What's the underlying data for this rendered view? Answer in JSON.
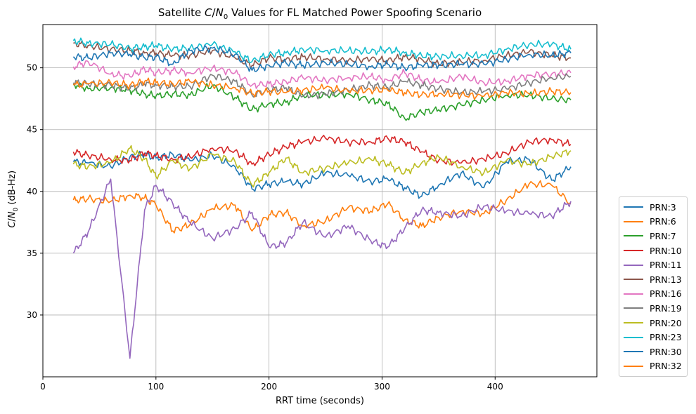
{
  "chart_data": {
    "type": "line",
    "title": "Satellite C/N0 Values for FL Matched Power Spoofing Scenario",
    "title_parts": [
      "Satellite ",
      "C",
      "/",
      "N",
      "0",
      " Values for FL Matched Power Spoofing Scenario"
    ],
    "xlabel": "RRT time (seconds)",
    "ylabel_parts": [
      "C",
      "/",
      "N",
      "0",
      " (dB-Hz)"
    ],
    "xlim": [
      0,
      490
    ],
    "ylim": [
      25,
      53.5
    ],
    "xticks": [
      0,
      100,
      200,
      300,
      400
    ],
    "yticks": [
      30,
      35,
      40,
      45,
      50
    ],
    "grid": true,
    "legend_position": "outside-right-bottom",
    "x": [
      27,
      40,
      60,
      77,
      90,
      100,
      115,
      130,
      150,
      170,
      185,
      200,
      215,
      230,
      250,
      270,
      290,
      305,
      320,
      335,
      350,
      370,
      390,
      410,
      430,
      450,
      467
    ],
    "series": [
      {
        "name": "PRN:3",
        "color": "#1f77b4",
        "values": [
          42.4,
          42.3,
          42.0,
          42.8,
          43.0,
          42.7,
          43.0,
          42.5,
          42.9,
          42.0,
          40.2,
          40.6,
          40.8,
          40.6,
          41.5,
          41.3,
          40.8,
          41.0,
          40.3,
          39.6,
          40.5,
          41.5,
          40.3,
          42.4,
          42.6,
          40.9,
          42.0
        ]
      },
      {
        "name": "PRN:6",
        "color": "#ff7f0e",
        "values": [
          39.3,
          39.4,
          39.2,
          39.7,
          39.5,
          38.9,
          36.8,
          37.3,
          38.6,
          38.9,
          36.8,
          38.1,
          38.3,
          37.2,
          37.6,
          38.7,
          38.4,
          39.0,
          37.7,
          37.2,
          37.9,
          38.4,
          38.2,
          39.3,
          40.6,
          40.5,
          39.0
        ]
      },
      {
        "name": "PRN:7",
        "color": "#2ca02c",
        "values": [
          48.7,
          48.3,
          48.4,
          48.2,
          47.9,
          47.7,
          47.9,
          47.8,
          48.6,
          47.6,
          46.6,
          47.1,
          47.2,
          47.8,
          47.8,
          47.9,
          47.4,
          47.1,
          45.9,
          46.4,
          46.6,
          47.0,
          47.4,
          47.8,
          47.8,
          47.5,
          47.4
        ]
      },
      {
        "name": "PRN:10",
        "color": "#d62728",
        "values": [
          43.2,
          42.9,
          42.6,
          42.5,
          43.1,
          42.9,
          42.6,
          42.8,
          43.5,
          43.3,
          42.2,
          43.0,
          43.6,
          44.0,
          44.3,
          44.0,
          44.0,
          44.3,
          44.0,
          43.2,
          42.5,
          42.3,
          42.6,
          43.1,
          44.0,
          44.2,
          43.8
        ]
      },
      {
        "name": "PRN:11",
        "color": "#9467bd",
        "values": [
          35.0,
          36.7,
          41.0,
          26.5,
          38.5,
          40.5,
          39.0,
          37.5,
          36.2,
          37.0,
          38.3,
          35.5,
          35.8,
          37.5,
          36.3,
          37.2,
          36.0,
          35.5,
          37.0,
          38.5,
          38.3,
          38.0,
          38.8,
          38.4,
          38.2,
          38.0,
          39.2
        ]
      },
      {
        "name": "PRN:13",
        "color": "#8c564b",
        "values": [
          52.0,
          51.8,
          51.5,
          51.4,
          51.2,
          51.2,
          51.0,
          51.0,
          51.4,
          50.8,
          50.2,
          50.8,
          50.7,
          50.9,
          50.7,
          50.6,
          50.7,
          50.6,
          50.9,
          50.7,
          50.3,
          50.5,
          50.6,
          51.0,
          51.3,
          51.0,
          50.8
        ]
      },
      {
        "name": "PRN:16",
        "color": "#e377c2",
        "values": [
          50.1,
          50.5,
          49.5,
          49.3,
          49.9,
          49.6,
          49.8,
          49.6,
          50.0,
          49.6,
          48.6,
          48.7,
          48.9,
          49.2,
          49.0,
          49.2,
          49.3,
          49.0,
          49.6,
          49.0,
          48.8,
          49.3,
          48.8,
          48.9,
          49.4,
          49.5,
          49.6
        ]
      },
      {
        "name": "PRN:19",
        "color": "#7f7f7f",
        "values": [
          48.8,
          48.7,
          48.6,
          48.3,
          48.7,
          48.6,
          48.5,
          48.5,
          49.4,
          48.9,
          47.8,
          48.2,
          48.4,
          47.7,
          47.9,
          48.2,
          48.6,
          48.4,
          48.9,
          48.6,
          48.3,
          48.0,
          48.1,
          48.3,
          48.8,
          49.2,
          49.3
        ]
      },
      {
        "name": "PRN:20",
        "color": "#bcbd22",
        "values": [
          42.2,
          42.0,
          42.3,
          43.5,
          42.6,
          41.2,
          42.5,
          41.8,
          43.0,
          42.4,
          40.5,
          41.5,
          42.7,
          41.5,
          41.9,
          42.3,
          42.6,
          42.2,
          41.5,
          42.3,
          42.8,
          42.0,
          41.5,
          42.5,
          42.2,
          42.8,
          43.3
        ]
      },
      {
        "name": "PRN:23",
        "color": "#17becf",
        "values": [
          52.2,
          52.0,
          51.9,
          51.6,
          51.7,
          51.8,
          51.5,
          51.6,
          51.9,
          51.3,
          50.5,
          51.1,
          51.2,
          51.5,
          51.4,
          51.4,
          51.3,
          51.5,
          51.2,
          51.0,
          50.9,
          51.0,
          51.0,
          51.5,
          51.9,
          51.9,
          51.5
        ]
      },
      {
        "name": "PRN:30",
        "color": "#1f77b4",
        "values": [
          50.9,
          50.8,
          51.2,
          51.1,
          50.8,
          50.9,
          50.3,
          51.4,
          51.6,
          51.1,
          49.8,
          50.2,
          50.4,
          50.2,
          50.4,
          50.3,
          50.1,
          50.3,
          50.0,
          50.2,
          50.2,
          50.3,
          50.3,
          50.7,
          51.1,
          51.0,
          51.2
        ]
      },
      {
        "name": "PRN:32",
        "color": "#ff7f0e",
        "values": [
          48.6,
          48.7,
          48.8,
          48.6,
          48.9,
          48.8,
          48.7,
          48.9,
          48.6,
          48.4,
          47.9,
          48.1,
          48.0,
          48.2,
          48.4,
          48.1,
          48.2,
          48.2,
          48.0,
          47.8,
          47.9,
          47.8,
          47.7,
          48.0,
          47.9,
          48.1,
          48.0
        ]
      }
    ]
  }
}
